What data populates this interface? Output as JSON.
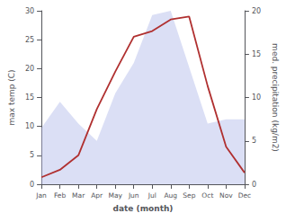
{
  "chart_data": {
    "type": "line",
    "categories": [
      "Jan",
      "Feb",
      "Mar",
      "Apr",
      "May",
      "Jun",
      "Jul",
      "Aug",
      "Sep",
      "Oct",
      "Nov",
      "Dec"
    ],
    "series": [
      {
        "type": "area",
        "color": "#b0b8e8",
        "axis": "y2",
        "values": [
          6.5,
          9.5,
          7.0,
          5.0,
          10.5,
          14.0,
          19.5,
          20.0,
          13.5,
          7.0,
          7.5,
          7.5
        ]
      },
      {
        "type": "line",
        "color": "#b03030",
        "values": [
          1.2,
          2.5,
          5.0,
          13.0,
          19.5,
          25.5,
          26.5,
          28.5,
          29.0,
          17.0,
          6.5,
          2.0
        ]
      }
    ],
    "xlabel": "date (month)",
    "ylabel": "max temp (C)",
    "y2label": "med. precipitation (kg/m2)",
    "ylim": [
      0,
      30
    ],
    "yticks": [
      0,
      5,
      10,
      15,
      20,
      25,
      30
    ],
    "y2lim": [
      0,
      20
    ],
    "y2ticks": [
      0,
      5,
      10,
      15,
      20
    ],
    "grid": false
  }
}
